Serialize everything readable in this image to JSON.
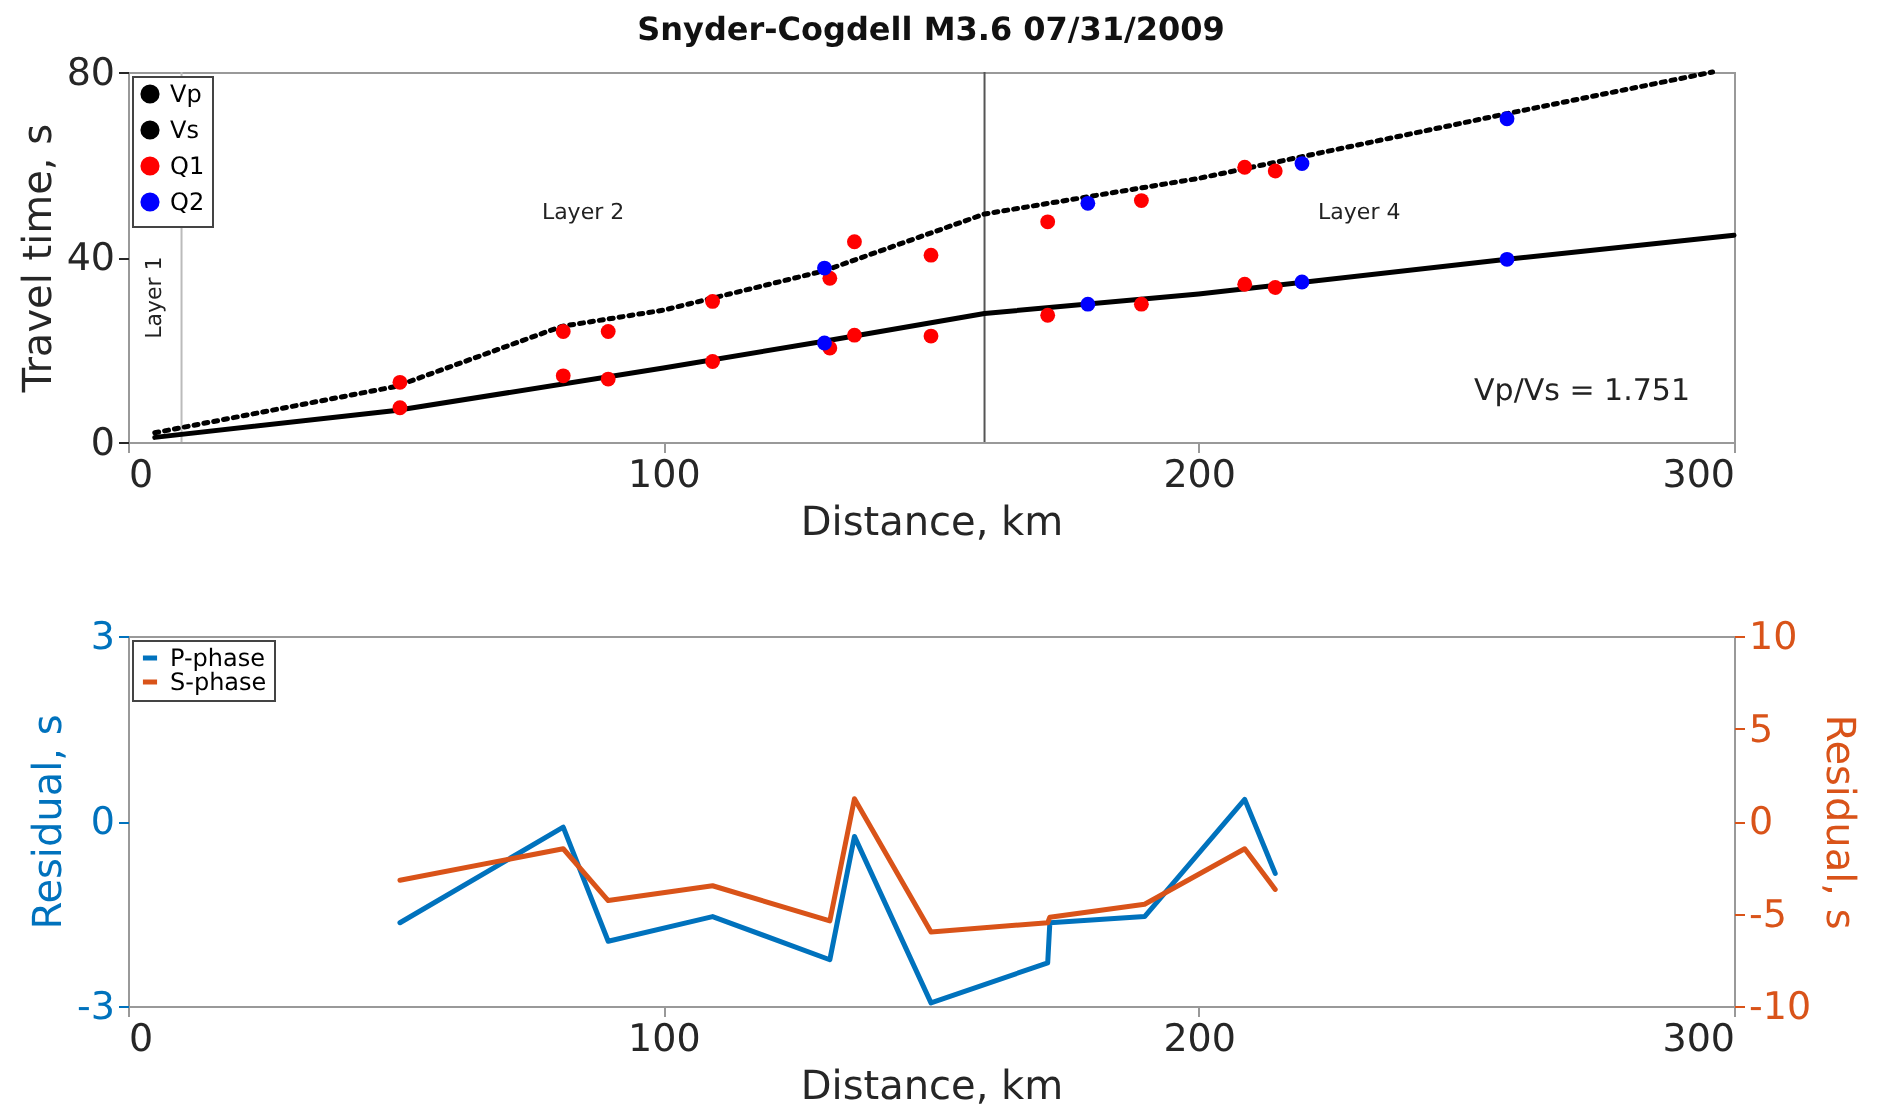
{
  "chart_data": [
    {
      "type": "line",
      "title": "Snyder-Cogdell M3.6 07/31/2009",
      "xlabel": "Distance, km",
      "ylabel": "Travel time, s",
      "xlim": [
        0,
        300
      ],
      "xticks": [
        0,
        100,
        200,
        300
      ],
      "ylim": [
        0,
        80
      ],
      "yticks": [
        0,
        40,
        80
      ],
      "legend": "top left",
      "grid": false,
      "series": [
        {
          "name": "Vp",
          "color": "#000000",
          "line_style": "solid",
          "x": [
            5,
            50,
            100,
            130,
            160,
            200,
            257.6,
            300
          ],
          "values": [
            1,
            6.8,
            16,
            21.8,
            27.8,
            32,
            39.5,
            44.7
          ]
        },
        {
          "name": "Vs",
          "color": "#000000",
          "line_style": "dotted",
          "x": [
            5,
            50,
            81,
            100,
            130,
            160,
            200,
            257.6,
            296
          ],
          "values": [
            2,
            12,
            25,
            28.5,
            37,
            49.3,
            57,
            71,
            80
          ]
        },
        {
          "name": "Q1",
          "color": "#ff0000",
          "type": "scatter",
          "marker": "circle",
          "x": [
            50.8,
            50.8,
            81.3,
            81.3,
            89.7,
            89.7,
            109.2,
            109.2,
            131.1,
            131.1,
            135.7,
            135.7,
            150,
            150,
            171.8,
            171.8,
            189.3,
            189.3,
            208.6,
            208.6,
            214.3,
            214.3
          ],
          "values": [
            12.9,
            7.4,
            23.9,
            14.3,
            23.9,
            13.6,
            30.4,
            17.4,
            35.4,
            20.3,
            43.3,
            23.1,
            40.4,
            22.9,
            47.6,
            27.4,
            52.2,
            29.8,
            59.4,
            34.1,
            58.6,
            33.4
          ]
        },
        {
          "name": "Q2",
          "color": "#0000ff",
          "type": "scatter",
          "marker": "circle",
          "x": [
            130.1,
            130.1,
            179.3,
            179.3,
            219.3,
            219.3,
            257.6,
            257.6
          ],
          "values": [
            37.6,
            21.4,
            51.6,
            29.8,
            60.2,
            34.6,
            69.9,
            39.5
          ]
        }
      ],
      "ref_lines": [
        {
          "axis": "x",
          "value": 10,
          "color": "#bbbbbb"
        },
        {
          "axis": "x",
          "value": 160,
          "color": "#555555"
        }
      ],
      "annotations": [
        "Layer 1",
        "Layer 2",
        "Layer 4",
        "Vp/Vs = 1.751"
      ]
    },
    {
      "type": "line",
      "xlabel": "Distance, km",
      "ylabel": "Residual, s",
      "y2label": "Residual, s",
      "xlim": [
        0,
        300
      ],
      "xticks": [
        0,
        100,
        200,
        300
      ],
      "ylim": [
        -3,
        3
      ],
      "yticks": [
        -3,
        0,
        3
      ],
      "y2lim": [
        -10,
        10
      ],
      "y2ticks": [
        -10,
        -5,
        0,
        5,
        10
      ],
      "legend": "top left",
      "grid": false,
      "line_style": "solid",
      "series": [
        {
          "name": "P-phase",
          "color": "#0072bd",
          "x": [
            50.8,
            81.3,
            89.7,
            109.2,
            131.1,
            135.7,
            150,
            171.8,
            172.2,
            189.9,
            208.6,
            214.3
          ],
          "values": [
            -1.65,
            -0.1,
            -1.95,
            -1.55,
            -2.25,
            -0.25,
            -2.95,
            -2.3,
            -1.65,
            -1.55,
            0.35,
            -0.85
          ]
        },
        {
          "name": "S-phase",
          "color": "#d95319",
          "axis": "y2",
          "x": [
            50.8,
            81.3,
            89.7,
            109.2,
            131.1,
            135.7,
            150,
            171.8,
            172.2,
            189.9,
            208.6,
            214.3
          ],
          "values": [
            -3.2,
            -1.5,
            -4.3,
            -3.5,
            -5.4,
            1.2,
            -6,
            -5.5,
            -5.2,
            -4.5,
            -1.5,
            -3.7
          ]
        }
      ]
    }
  ]
}
